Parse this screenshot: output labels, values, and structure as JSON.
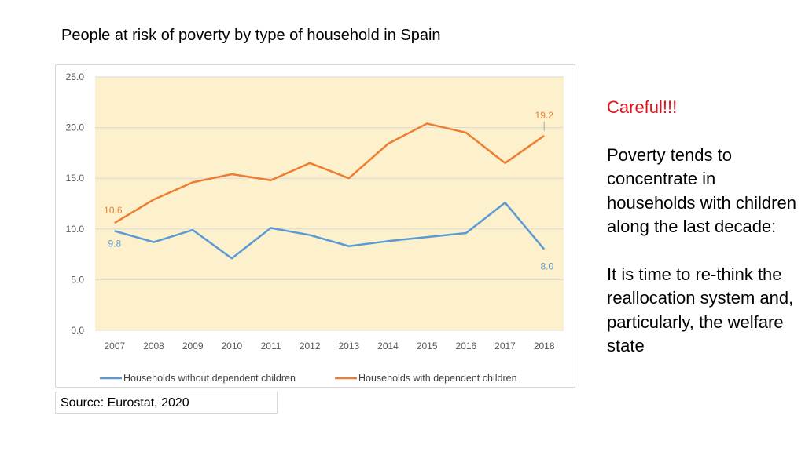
{
  "title": "People at risk of poverty by type of household in Spain",
  "source": "Source: Eurostat, 2020",
  "side": {
    "warning": "Careful!!!",
    "paragraph1": "Poverty tends to concentrate in households with children along the last decade:",
    "paragraph2": "It is time to re-think the reallocation system and, particularly, the welfare state"
  },
  "chart_data": {
    "type": "line",
    "categories": [
      "2007",
      "2008",
      "2009",
      "2010",
      "2011",
      "2012",
      "2013",
      "2014",
      "2015",
      "2016",
      "2017",
      "2018"
    ],
    "ylim": [
      0,
      25
    ],
    "yticks": [
      "0.0",
      "5.0",
      "10.0",
      "15.0",
      "20.0",
      "25.0"
    ],
    "plot_background": "#fdf0cc",
    "legend_position": "bottom",
    "series": [
      {
        "name": "Households without dependent children",
        "color": "#5b9bd5",
        "values": [
          9.8,
          8.7,
          9.9,
          7.1,
          10.1,
          9.4,
          8.3,
          8.8,
          9.2,
          9.6,
          12.6,
          8.0
        ]
      },
      {
        "name": "Households with dependent children",
        "color": "#ed7d31",
        "values": [
          10.6,
          12.9,
          14.6,
          15.4,
          14.8,
          16.5,
          15.0,
          18.4,
          20.4,
          19.5,
          16.5,
          19.2
        ]
      }
    ],
    "data_labels": [
      {
        "series": 0,
        "index": 0,
        "text": "9.8"
      },
      {
        "series": 0,
        "index": 11,
        "text": "8.0"
      },
      {
        "series": 1,
        "index": 0,
        "text": "10.6"
      },
      {
        "series": 1,
        "index": 11,
        "text": "19.2"
      }
    ]
  }
}
